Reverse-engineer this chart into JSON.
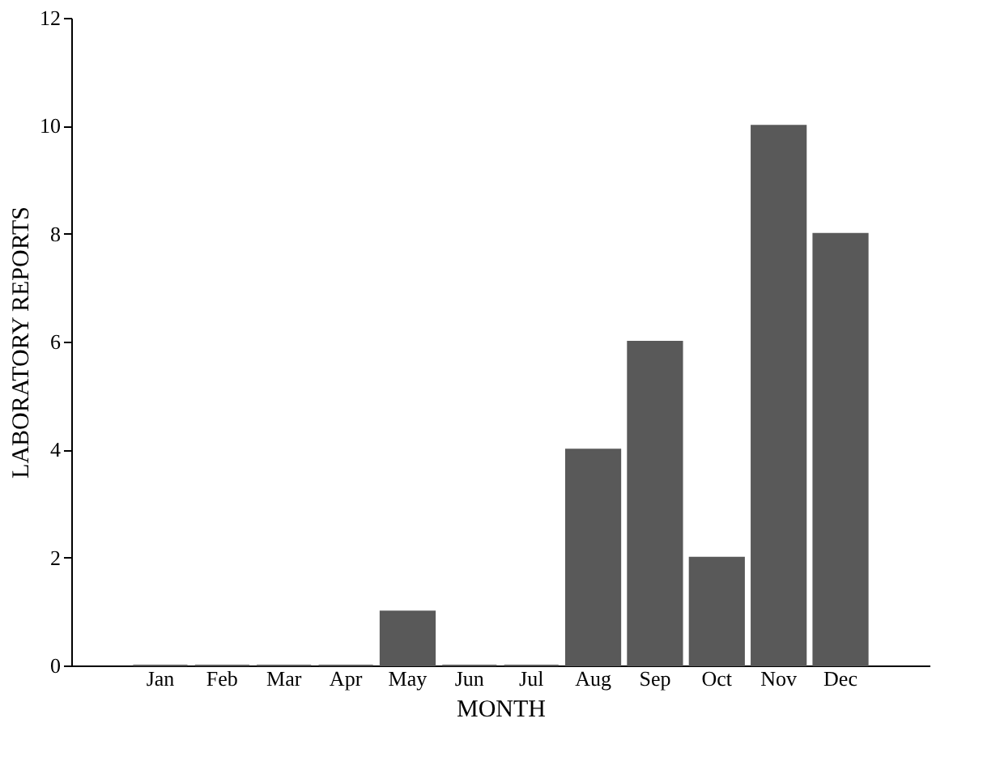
{
  "chart_data": {
    "type": "bar",
    "categories": [
      "Jan",
      "Feb",
      "Mar",
      "Apr",
      "May",
      "Jun",
      "Jul",
      "Aug",
      "Sep",
      "Oct",
      "Nov",
      "Dec"
    ],
    "values": [
      0,
      0,
      0,
      0,
      1,
      0,
      0,
      4,
      6,
      2,
      10,
      8
    ],
    "color": "#595959",
    "xlabel": "MONTH",
    "ylabel": "LABORATORY REPORTS",
    "ylim": [
      0,
      12
    ],
    "yticks": [
      0,
      2,
      4,
      6,
      8,
      10,
      12
    ]
  }
}
